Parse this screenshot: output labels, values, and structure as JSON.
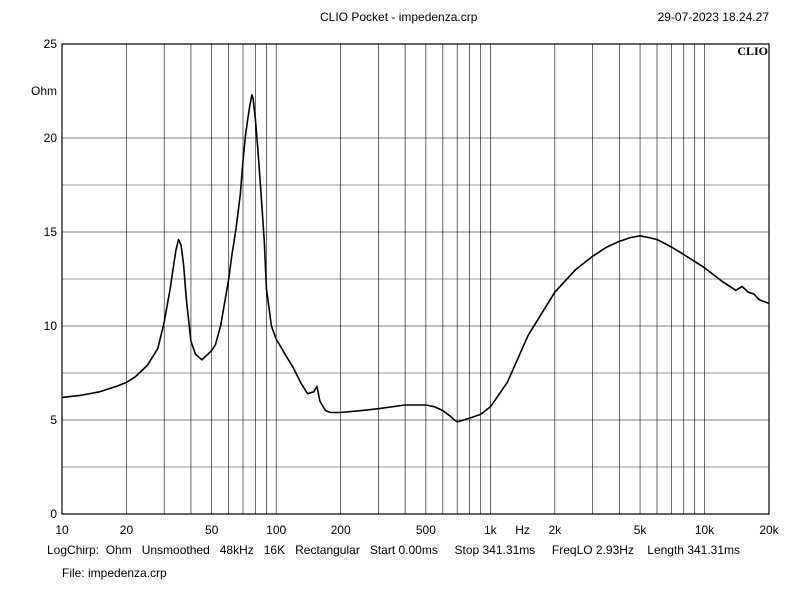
{
  "header": {
    "title": "CLIO Pocket - impedenza.crp",
    "timestamp": "29-07-2023 18.24.27"
  },
  "logo_text": "CLIO",
  "footer": {
    "params": "LogChirp:  Ohm   Unsmoothed   48kHz   16K   Rectangular   Start 0.00ms     Stop 341.31ms     FreqLO 2.93Hz    Length 341.31ms",
    "file": "File: impedenza.crp"
  },
  "chart_data": {
    "type": "line",
    "title": "CLIO Pocket - impedenza.crp",
    "xlabel": "Hz",
    "ylabel": "Ohm",
    "x_scale": "log",
    "xlim": [
      10,
      20000
    ],
    "ylim": [
      0,
      25
    ],
    "x_ticks": [
      {
        "value": 10,
        "label": "10"
      },
      {
        "value": 20,
        "label": "20"
      },
      {
        "value": 50,
        "label": "50"
      },
      {
        "value": 100,
        "label": "100"
      },
      {
        "value": 200,
        "label": "200"
      },
      {
        "value": 500,
        "label": "500"
      },
      {
        "value": 1000,
        "label": "1k"
      },
      {
        "value": 2000,
        "label": "2k"
      },
      {
        "value": 5000,
        "label": "5k"
      },
      {
        "value": 10000,
        "label": "10k"
      },
      {
        "value": 20000,
        "label": "20k"
      }
    ],
    "y_ticks": [
      {
        "value": 0,
        "label": "0"
      },
      {
        "value": 5,
        "label": "5"
      },
      {
        "value": 10,
        "label": "10"
      },
      {
        "value": 15,
        "label": "15"
      },
      {
        "value": 20,
        "label": "20"
      },
      {
        "value": 25,
        "label": "25"
      }
    ],
    "y_minor_ticks": [
      2.5,
      7.5,
      12.5,
      17.5
    ],
    "grid": true,
    "line_color": "#000000",
    "series": [
      {
        "x": [
          10,
          12,
          15,
          18,
          20,
          22,
          25,
          28,
          30,
          32,
          34,
          35,
          36,
          37,
          38,
          40,
          42,
          45,
          48,
          50,
          52,
          55,
          58,
          60,
          62,
          65,
          68,
          70,
          72,
          75,
          77,
          78,
          80,
          82,
          85,
          88,
          90,
          95,
          100,
          105,
          110,
          120,
          130,
          140,
          150,
          155,
          160,
          170,
          180,
          200,
          250,
          300,
          400,
          500,
          550,
          600,
          650,
          680,
          700,
          750,
          800,
          900,
          1000,
          1200,
          1500,
          2000,
          2500,
          3000,
          3500,
          4000,
          4500,
          5000,
          5500,
          6000,
          7000,
          8000,
          10000,
          12000,
          14000,
          15000,
          16000,
          17000,
          18000,
          19000,
          20000
        ],
        "y": [
          6.2,
          6.3,
          6.5,
          6.8,
          7.0,
          7.3,
          7.9,
          8.8,
          10.2,
          12.0,
          14.0,
          14.6,
          14.3,
          13.2,
          11.5,
          9.2,
          8.5,
          8.2,
          8.5,
          8.7,
          9.0,
          10.0,
          11.5,
          12.5,
          13.7,
          15.2,
          17.0,
          18.8,
          20.2,
          21.6,
          22.3,
          22.1,
          21.0,
          19.5,
          17.0,
          14.5,
          12.0,
          10.0,
          9.3,
          8.9,
          8.5,
          7.8,
          7.0,
          6.4,
          6.5,
          6.8,
          6.0,
          5.5,
          5.4,
          5.4,
          5.5,
          5.6,
          5.8,
          5.8,
          5.7,
          5.5,
          5.2,
          5.0,
          4.9,
          5.0,
          5.1,
          5.3,
          5.7,
          7.0,
          9.5,
          11.8,
          13.0,
          13.7,
          14.2,
          14.5,
          14.7,
          14.8,
          14.7,
          14.6,
          14.2,
          13.8,
          13.1,
          12.4,
          11.9,
          12.1,
          11.8,
          11.7,
          11.4,
          11.3,
          11.2
        ]
      }
    ]
  }
}
